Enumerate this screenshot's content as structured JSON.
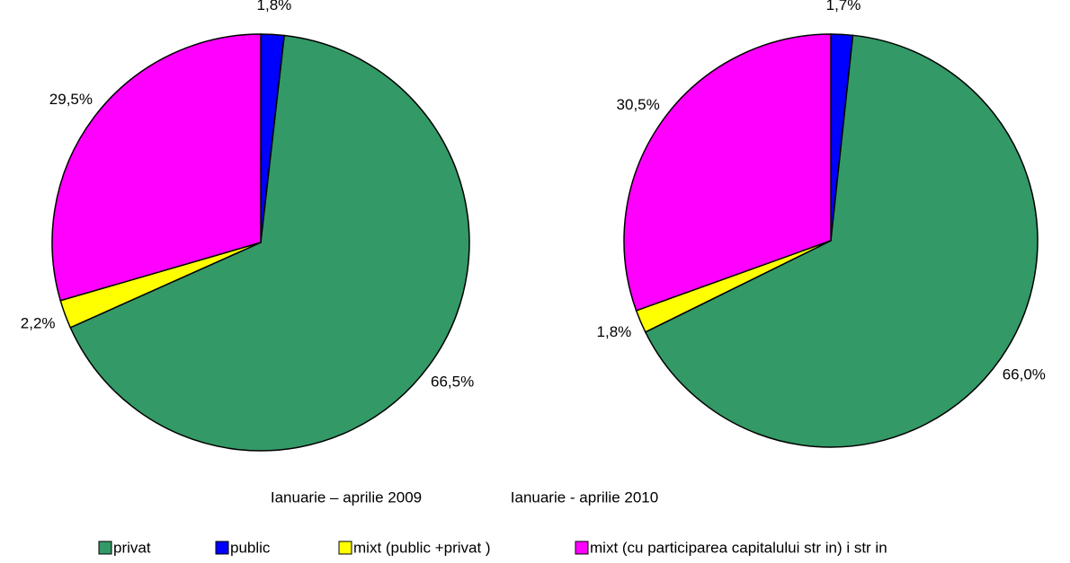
{
  "chart_data": [
    {
      "type": "pie",
      "title": "Ianuarie – aprilie 2009",
      "values": [
        1.8,
        66.5,
        2.2,
        29.5
      ],
      "value_labels": [
        "1,8%",
        "66,5%",
        "2,2%",
        "29,5%"
      ]
    },
    {
      "type": "pie",
      "title": "Ianuarie - aprilie 2010",
      "values": [
        1.7,
        66.0,
        1.8,
        30.5
      ],
      "value_labels": [
        "1,7%",
        "66,0%",
        "1,8%",
        "30,5%"
      ]
    }
  ],
  "legend": [
    {
      "name": "public",
      "color": "#0000ff"
    },
    {
      "name": "privat",
      "color": "#339966"
    },
    {
      "name": "mixt (public +privat )",
      "color": "#ffff00"
    },
    {
      "name": "mixt (cu participarea capitalului str in) i str in",
      "color": "#ff00ff"
    }
  ]
}
